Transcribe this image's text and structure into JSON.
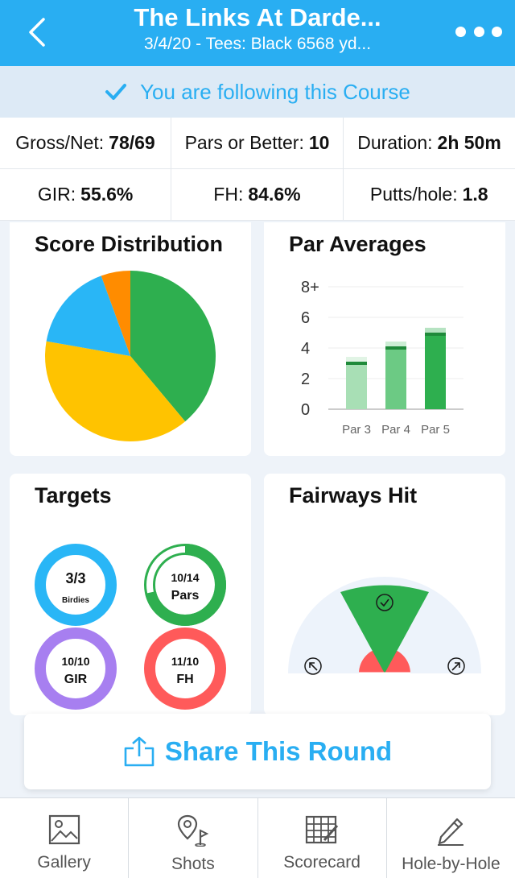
{
  "header": {
    "title": "The Links At Darde...",
    "subtitle": "3/4/20 - Tees: Black 6568 yd..."
  },
  "follow_banner": {
    "text": "You are following this Course"
  },
  "stats": {
    "row1": [
      {
        "label": "Gross/Net:",
        "value": "78/69"
      },
      {
        "label": "Pars or Better:",
        "value": "10"
      },
      {
        "label": "Duration:",
        "value": "2h 50m"
      }
    ],
    "row2": [
      {
        "label": "GIR:",
        "value": "55.6%"
      },
      {
        "label": "FH:",
        "value": "84.6%"
      },
      {
        "label": "Putts/hole:",
        "value": "1.8"
      }
    ]
  },
  "score_distribution": {
    "title": "Score Distribution",
    "chart_data": {
      "type": "pie",
      "slices": [
        {
          "value": 7,
          "color": "#2eaf4f"
        },
        {
          "value": 7,
          "color": "#ffc300"
        },
        {
          "value": 3,
          "color": "#29b6f6"
        },
        {
          "value": 1,
          "color": "#ff8c00"
        }
      ]
    }
  },
  "par_averages": {
    "title": "Par Averages",
    "chart_data": {
      "type": "bar",
      "categories": [
        "Par 3",
        "Par 4",
        "Par 5"
      ],
      "values": [
        3.0,
        4.0,
        4.9
      ],
      "ytick_labels": [
        "0",
        "2",
        "4",
        "6",
        "8+"
      ],
      "ylim": [
        0,
        8
      ],
      "colors": [
        "#a8dfb5",
        "#6cca84",
        "#2eaf4f"
      ],
      "marker_color": "#1f8a3a"
    }
  },
  "targets": {
    "title": "Targets",
    "items": [
      {
        "value": "3/3",
        "label": "Birdies",
        "color": "#29b6f6",
        "progress": 1.0
      },
      {
        "value": "10/14",
        "label": "Pars",
        "color": "#2eaf4f",
        "progress": 0.714
      },
      {
        "value": "10/10",
        "label": "GIR",
        "color": "#a77ff0",
        "progress": 1.0
      },
      {
        "value": "11/10",
        "label": "FH",
        "color": "#ff5a5a",
        "progress": 1.0
      }
    ]
  },
  "fairways_hit": {
    "title": "Fairways Hit"
  },
  "share": {
    "label": "Share This Round"
  },
  "tabs": [
    {
      "label": "Gallery",
      "icon": "gallery-icon"
    },
    {
      "label": "Shots",
      "icon": "shots-icon"
    },
    {
      "label": "Scorecard",
      "icon": "scorecard-icon"
    },
    {
      "label": "Hole-by-Hole",
      "icon": "pencil-icon"
    }
  ],
  "colors": {
    "accent": "#29aef2",
    "green": "#2eaf4f",
    "red": "#ff5a5a"
  }
}
